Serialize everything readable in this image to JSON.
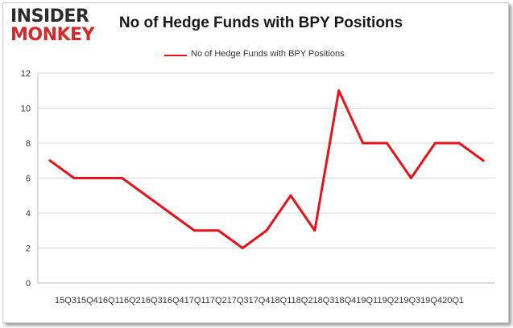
{
  "brand": {
    "logo_top": "INSIDER",
    "logo_bottom": "MONKEY",
    "logo_top_color": "#2b2b2b",
    "logo_bottom_color": "#d42a2a"
  },
  "chart_data": {
    "type": "line",
    "title": "No of Hedge Funds with BPY Positions",
    "xlabel": "",
    "ylabel": "",
    "legend_position": "top-center",
    "grid": true,
    "x_tick_text": "15Q315Q416Q116Q216Q316Q417Q117Q217Q317Q418Q118Q218Q318Q419Q119Q219Q319Q420Q1",
    "categories": [
      "15Q3",
      "15Q4",
      "16Q1",
      "16Q2",
      "16Q3",
      "16Q4",
      "17Q1",
      "17Q2",
      "17Q3",
      "17Q4",
      "18Q1",
      "18Q2",
      "18Q3",
      "18Q4",
      "19Q1",
      "19Q2",
      "19Q3",
      "19Q4",
      "20Q1"
    ],
    "ylim": [
      0,
      12
    ],
    "yticks": [
      0,
      2,
      4,
      6,
      8,
      10,
      12
    ],
    "series": [
      {
        "name": "No of Hedge Funds with BPY Positions",
        "color": "#e8131a",
        "values": [
          7,
          6,
          6,
          6,
          5,
          4,
          3,
          3,
          2,
          3,
          5,
          3,
          11,
          8,
          8,
          6,
          8,
          8,
          7
        ]
      }
    ]
  }
}
